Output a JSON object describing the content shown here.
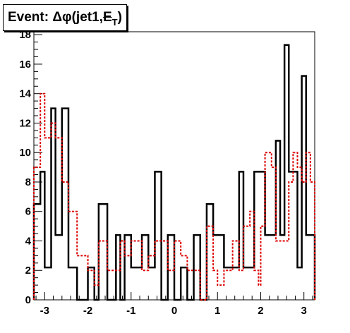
{
  "chart_data": {
    "type": "histogram-step",
    "title": {
      "prefix": "Event: ",
      "symbol": "Δφ",
      "middle": "(jet1,",
      "met": "E",
      "subscript": "T",
      "suffix": ")"
    },
    "xlabel": "",
    "ylabel": "",
    "xlim": [
      -3.25,
      3.25
    ],
    "ylim": [
      0,
      18.2
    ],
    "xticks": [
      -3,
      -2,
      -1,
      0,
      1,
      2,
      3
    ],
    "yticks": [
      0,
      2,
      4,
      6,
      8,
      10,
      12,
      14,
      16,
      18
    ],
    "bin_edges": [
      -3.25,
      -3.1,
      -3.0,
      -2.85,
      -2.75,
      -2.6,
      -2.45,
      -2.25,
      -2.0,
      -1.85,
      -1.75,
      -1.55,
      -1.35,
      -1.25,
      -1.15,
      -1.0,
      -0.75,
      -0.6,
      -0.45,
      -0.3,
      -0.15,
      0.0,
      0.15,
      0.3,
      0.45,
      0.6,
      0.75,
      0.9,
      1.0,
      1.15,
      1.35,
      1.5,
      1.6,
      1.75,
      1.85,
      1.95,
      2.0,
      2.1,
      2.25,
      2.35,
      2.45,
      2.55,
      2.65,
      2.75,
      2.85,
      2.95,
      3.05,
      3.15,
      3.25
    ],
    "series": [
      {
        "style": "solid",
        "color": "#000000",
        "values": [
          6.5,
          8.7,
          2.2,
          13.0,
          4.4,
          13.0,
          2.2,
          0,
          2.2,
          0,
          6.5,
          0,
          4.4,
          0,
          4.4,
          2.2,
          4.4,
          2.2,
          8.7,
          0,
          4.4,
          0,
          2.2,
          0,
          4.4,
          0,
          6.5,
          4.4,
          4.4,
          2.2,
          2.2,
          8.7,
          2.2,
          2.2,
          8.7,
          8.7,
          8.7,
          4.4,
          4.4,
          10.8,
          4.4,
          17.3,
          8.7,
          8.7,
          2.2,
          15.2,
          4.4,
          4.4
        ]
      },
      {
        "style": "dashed",
        "color": "#dd0000",
        "values": [
          9.0,
          14.0,
          11.0,
          12.0,
          11.0,
          8.0,
          6.0,
          3.0,
          2.0,
          1.0,
          4.0,
          2.0,
          2.0,
          4.0,
          3.0,
          4.0,
          2.0,
          3.0,
          4.0,
          4.0,
          2.0,
          4.0,
          3.0,
          2.0,
          2.0,
          0,
          5.0,
          2.0,
          1.0,
          2.0,
          4.0,
          2.0,
          5.0,
          6.0,
          2.0,
          1.0,
          5.0,
          10.0,
          9.0,
          4.0,
          4.0,
          4.0,
          8.0,
          10.0,
          9.0,
          8.0,
          10.0,
          8.0
        ]
      }
    ],
    "grid": false,
    "legend": "none"
  }
}
